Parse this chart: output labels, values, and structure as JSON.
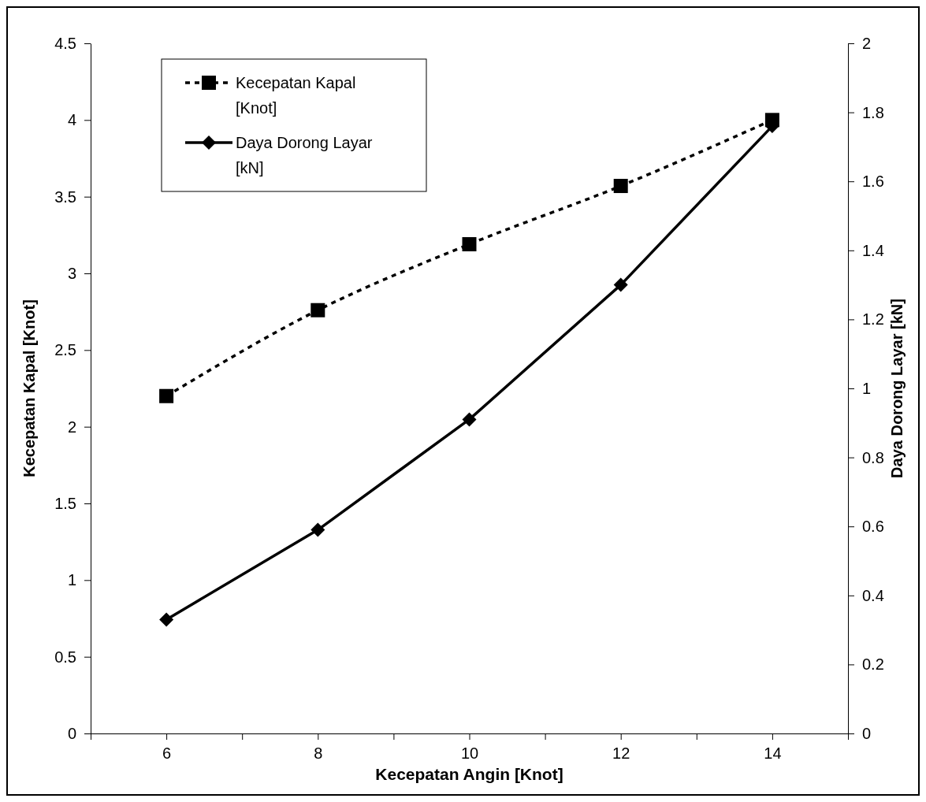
{
  "chart_data": {
    "type": "line",
    "xlabel": "Kecepatan Angin [Knot]",
    "ylabel": "Kecepatan Kapal [Knot]",
    "y2label": "Daya Dorong Layar [kN]",
    "x": [
      6,
      8,
      10,
      12,
      14
    ],
    "series": [
      {
        "name": "Kecepatan Kapal [Knot]",
        "color": "#000000",
        "values": [
          2.2,
          2.76,
          3.19,
          3.57,
          4.0
        ],
        "marker": "square",
        "line_style": "dotted"
      },
      {
        "name": "Daya Dorong Layar [kN]",
        "color": "#000000",
        "values": [
          0.33,
          0.59,
          0.91,
          1.3,
          1.76
        ],
        "marker": "diamond",
        "line_style": "solid",
        "axis": "y2"
      }
    ],
    "xlim": [
      5,
      15
    ],
    "xticks": [
      {
        "value": 5,
        "label": null
      },
      6,
      {
        "value": 7,
        "label": null
      },
      8,
      {
        "value": 9,
        "label": null
      },
      10,
      {
        "value": 11,
        "label": null
      },
      12,
      {
        "value": 13,
        "label": null
      },
      14,
      {
        "value": 15,
        "label": null
      }
    ],
    "ylim": [
      0,
      4.5
    ],
    "yticks": [
      0,
      0.5,
      1,
      1.5,
      2,
      2.5,
      3,
      3.5,
      4,
      4.5
    ],
    "y2lim": [
      0,
      2
    ],
    "y2ticks": [
      0,
      0.2,
      0.4,
      0.6,
      0.8,
      1,
      1.2,
      1.4,
      1.6,
      1.8,
      2
    ],
    "grid": false,
    "legend": "top left"
  }
}
